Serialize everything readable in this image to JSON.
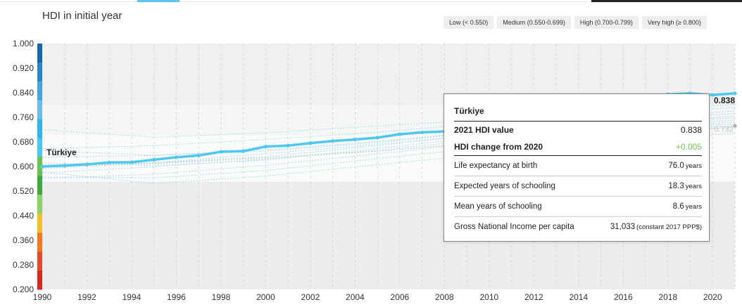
{
  "header": {
    "title": "HDI in initial year",
    "legend": [
      "Low (< 0.550)",
      "Medium (0.550-0.699)",
      "High (0.700-0.799)",
      "Very high (≥ 0.800)"
    ]
  },
  "colors": {
    "highlight": "#4fc8ef",
    "band_very_high": "#f0f0f0",
    "band_high": "#f6f6f6",
    "band_medium": "#fafafa",
    "band_low": "#ececec",
    "scale": [
      "#1666a8",
      "#2b86c5",
      "#4aa3dc",
      "#6cbde9",
      "#2fb5ea",
      "#4cc7f0",
      "#6dc24b",
      "#3ea83f",
      "#8cd46a",
      "#f2bf2a",
      "#f07a22",
      "#e84a2e",
      "#d42a1f"
    ]
  },
  "chart_data": {
    "type": "line",
    "y_ticks": [
      "1.000",
      "0.920",
      "0.840",
      "0.760",
      "0.680",
      "0.600",
      "0.520",
      "0.440",
      "0.360",
      "0.280",
      "0.200"
    ],
    "x_ticks": [
      "1990",
      "1992",
      "1994",
      "1996",
      "1998",
      "2000",
      "2002",
      "2004",
      "2006",
      "2008",
      "2010",
      "2012",
      "2014",
      "2016",
      "2018",
      "2020"
    ],
    "ylim": [
      0.2,
      1.0
    ],
    "xlim": [
      1990,
      2021
    ],
    "highlight_series": {
      "name": "Türkiye",
      "end_label": "0.838",
      "x": [
        1990,
        1991,
        1992,
        1993,
        1994,
        1995,
        1996,
        1997,
        1998,
        1999,
        2000,
        2001,
        2002,
        2003,
        2004,
        2005,
        2006,
        2007,
        2008,
        2009,
        2010,
        2011,
        2012,
        2013,
        2014,
        2015,
        2016,
        2017,
        2018,
        2019,
        2020,
        2021
      ],
      "values": [
        0.6,
        0.603,
        0.607,
        0.613,
        0.614,
        0.622,
        0.63,
        0.636,
        0.648,
        0.65,
        0.665,
        0.668,
        0.676,
        0.683,
        0.688,
        0.694,
        0.705,
        0.711,
        0.714,
        0.718,
        0.735,
        0.753,
        0.765,
        0.782,
        0.795,
        0.808,
        0.817,
        0.827,
        0.835,
        0.838,
        0.833,
        0.838
      ]
    },
    "background_series": [
      {
        "x": [
          1990,
          1995,
          2000,
          2005,
          2010,
          2015,
          2021
        ],
        "values": [
          0.63,
          0.636,
          0.65,
          0.678,
          0.715,
          0.752,
          0.781
        ]
      },
      {
        "x": [
          1990,
          1995,
          2000,
          2005,
          2010,
          2015,
          2021
        ],
        "values": [
          0.579,
          0.599,
          0.624,
          0.653,
          0.69,
          0.72,
          0.744
        ]
      },
      {
        "x": [
          1990,
          1995,
          2000,
          2005,
          2010,
          2015,
          2021
        ],
        "values": [
          0.566,
          0.563,
          0.587,
          0.626,
          0.663,
          0.7,
          0.728
        ]
      },
      {
        "x": [
          1990,
          1995,
          2000,
          2005,
          2010,
          2015,
          2021
        ],
        "values": [
          0.72,
          0.695,
          0.71,
          0.732,
          0.752,
          0.771,
          0.791
        ]
      },
      {
        "x": [
          1990,
          1995,
          2000,
          2005,
          2010,
          2015,
          2021
        ],
        "values": [
          0.658,
          0.668,
          0.688,
          0.712,
          0.742,
          0.77,
          0.802
        ]
      },
      {
        "x": [
          1990,
          1995,
          2000,
          2005,
          2010,
          2015,
          2021
        ],
        "values": [
          0.612,
          0.603,
          0.621,
          0.659,
          0.698,
          0.735,
          0.764
        ]
      },
      {
        "x": [
          1990,
          1995,
          2000,
          2005,
          2010,
          2015,
          2021
        ],
        "values": [
          0.582,
          0.545,
          0.569,
          0.606,
          0.641,
          0.678,
          0.708
        ]
      },
      {
        "x": [
          1990,
          1995,
          2000,
          2005,
          2010,
          2015,
          2021
        ],
        "values": [
          0.593,
          0.612,
          0.642,
          0.672,
          0.706,
          0.733,
          0.75
        ]
      },
      {
        "x": [
          1990,
          1995,
          2000,
          2005,
          2010,
          2015,
          2021
        ],
        "values": [
          0.651,
          0.637,
          0.654,
          0.681,
          0.716,
          0.741,
          0.758
        ]
      },
      {
        "x": [
          1990,
          1995,
          2000,
          2005,
          2010,
          2015,
          2021
        ],
        "values": [
          0.605,
          0.612,
          0.632,
          0.668,
          0.708,
          0.746,
          0.772
        ]
      },
      {
        "x": [
          1990,
          1995,
          2000,
          2005,
          2010,
          2015,
          2021
        ],
        "values": [
          0.561,
          0.575,
          0.604,
          0.641,
          0.681,
          0.716,
          0.738
        ]
      }
    ],
    "gray_series": {
      "x": [
        1990,
        1995,
        2000,
        2005,
        2010,
        2015,
        2021
      ],
      "values": [
        0.6,
        0.61,
        0.628,
        0.65,
        0.68,
        0.708,
        0.732
      ],
      "end_label": "0.732"
    }
  },
  "tooltip": {
    "country": "Türkiye",
    "rows": [
      {
        "label": "2021 HDI value",
        "value": "0.838"
      },
      {
        "label": "HDI change from 2020",
        "value": "+0.005"
      }
    ],
    "components": [
      {
        "label": "Life expectancy at birth",
        "value": "76.0",
        "unit": "years"
      },
      {
        "label": "Expected years of schooling",
        "value": "18.3",
        "unit": "years"
      },
      {
        "label": "Mean years of schooling",
        "value": "8.6",
        "unit": "years"
      },
      {
        "label": "Gross National Income per capita",
        "value": "31,033",
        "unit": "(constant 2017 PPP$)"
      }
    ]
  }
}
